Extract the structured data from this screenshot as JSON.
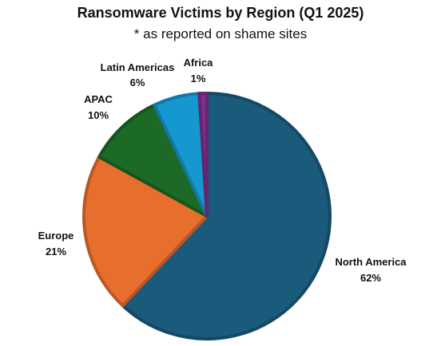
{
  "chart_data": {
    "type": "pie",
    "title": "Ransomware Victims by Region (Q1 2025)",
    "subtitle": "* as reported on shame sites",
    "slices": [
      {
        "label": "North America",
        "value_label": "62%",
        "value": 62,
        "color": "#1a5a7a"
      },
      {
        "label": "Europe",
        "value_label": "21%",
        "value": 21,
        "color": "#e86e2e"
      },
      {
        "label": "APAC",
        "value_label": "10%",
        "value": 10,
        "color": "#1c6a26"
      },
      {
        "label": "Latin Americas",
        "value_label": "6%",
        "value": 6,
        "color": "#1597cf"
      },
      {
        "label": "Africa",
        "value_label": "1%",
        "value": 1,
        "color": "#7d2f8a"
      }
    ]
  }
}
